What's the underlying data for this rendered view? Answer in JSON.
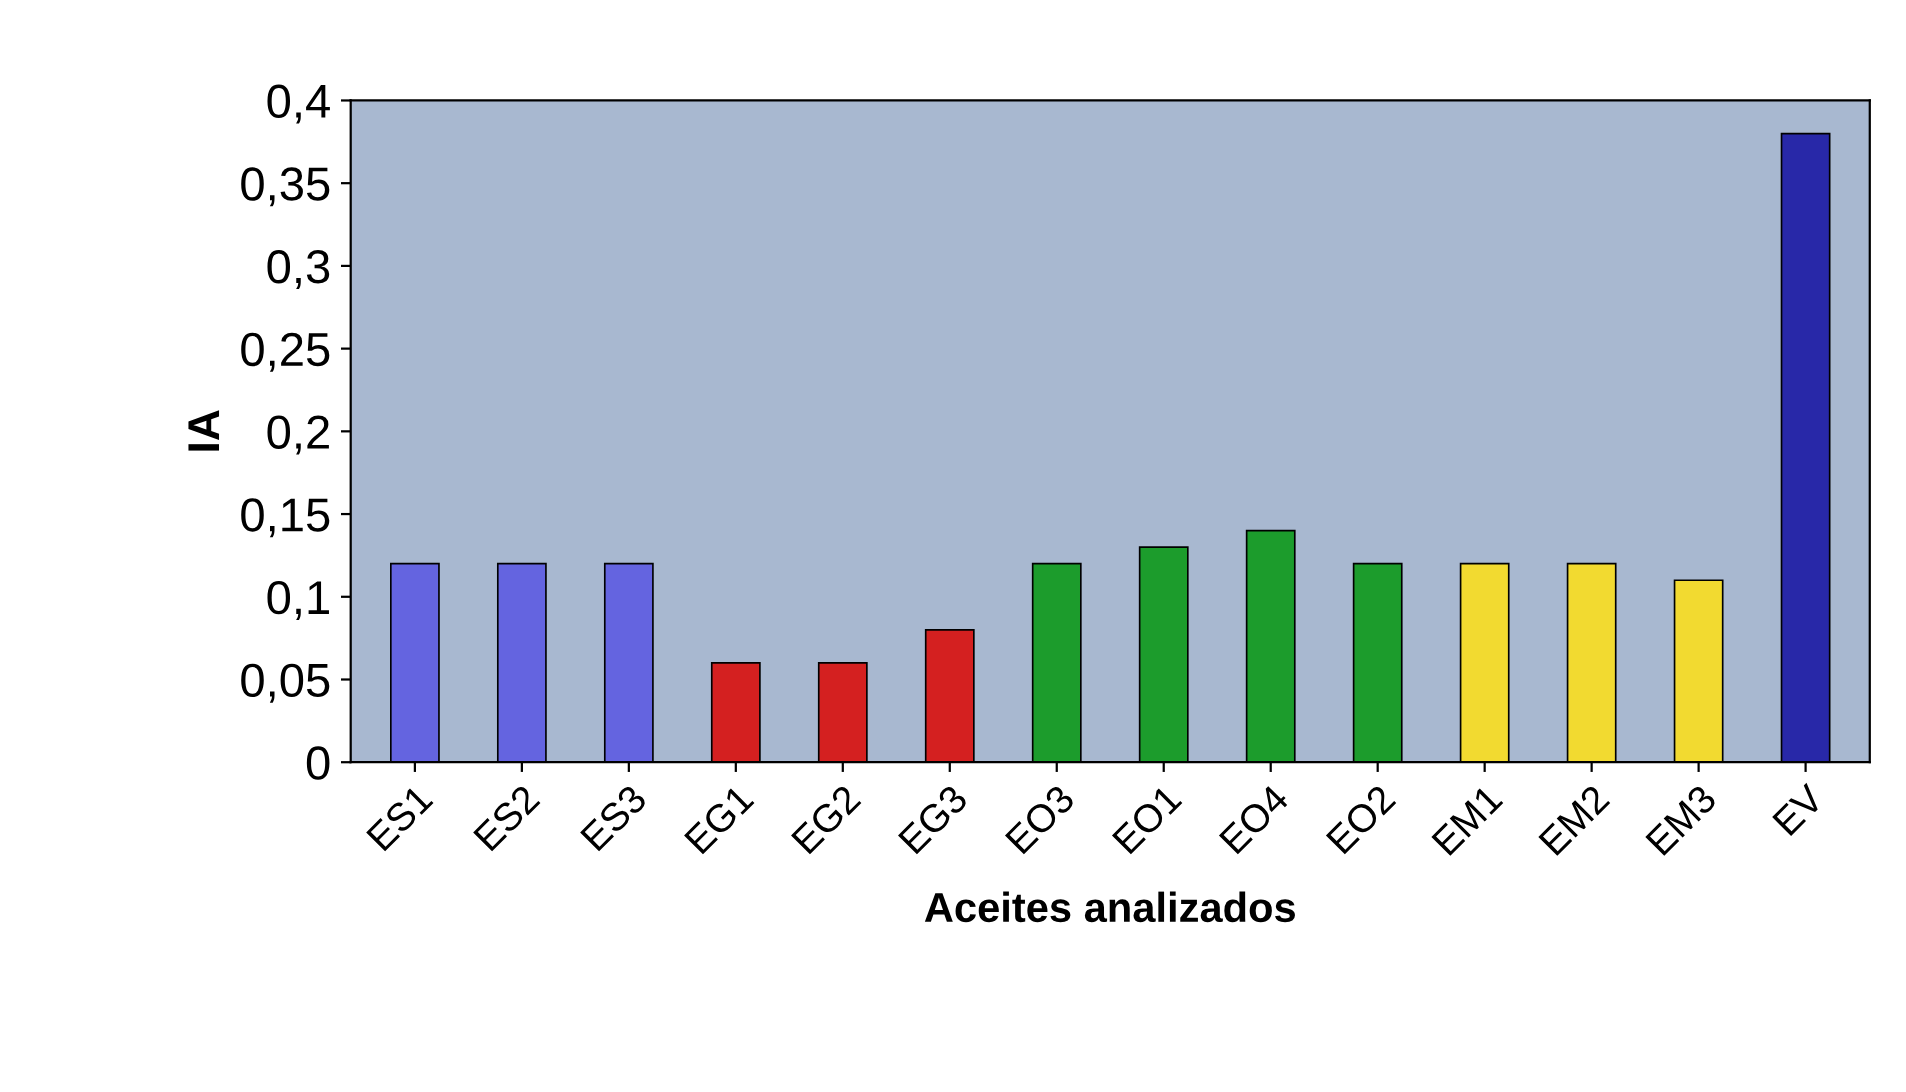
{
  "chart_data": {
    "type": "bar",
    "xlabel": "Aceites analizados",
    "ylabel": "IA",
    "categories": [
      "ES1",
      "ES2",
      "ES3",
      "EG1",
      "EG2",
      "EG3",
      "EO3",
      "EO1",
      "EO4",
      "EO2",
      "EM1",
      "EM2",
      "EM3",
      "EV"
    ],
    "values": [
      0.12,
      0.12,
      0.12,
      0.06,
      0.06,
      0.08,
      0.12,
      0.13,
      0.14,
      0.12,
      0.12,
      0.12,
      0.11,
      0.38
    ],
    "colors": [
      "#6464e0",
      "#6464e0",
      "#6464e0",
      "#d42020",
      "#d42020",
      "#d42020",
      "#1c9c2c",
      "#1c9c2c",
      "#1c9c2c",
      "#1c9c2c",
      "#f2da30",
      "#f2da30",
      "#f2da30",
      "#2828a8"
    ],
    "ylim": [
      0,
      0.4
    ],
    "yticks": [
      0,
      {
        "value": 0.05,
        "label": "0,05"
      },
      {
        "value": 0.1,
        "label": "0,1"
      },
      {
        "value": 0.15,
        "label": "0,15"
      },
      {
        "value": 0.2,
        "label": "0,2"
      },
      {
        "value": 0.25,
        "label": "0,25"
      },
      {
        "value": 0.3,
        "label": "0,3"
      },
      {
        "value": 0.35,
        "label": "0,35"
      },
      {
        "value": 0.4,
        "label": "0,4"
      }
    ],
    "grid": false,
    "legend": false
  }
}
